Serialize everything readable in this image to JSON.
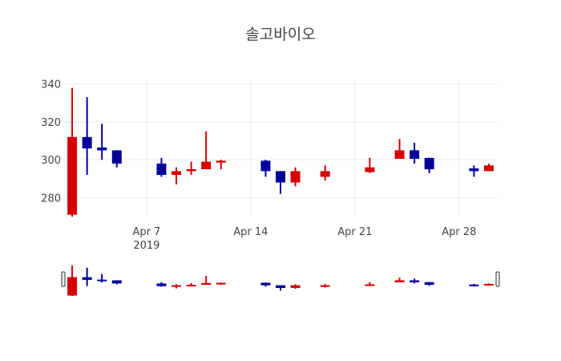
{
  "chart_data": {
    "type": "candlestick",
    "title": "솔고바이오",
    "xlabel": "",
    "ylabel": "",
    "x_range": [
      "2019-04-01T11:00",
      "2019-04-30T13:00"
    ],
    "ylim": [
      270,
      342
    ],
    "grid": true,
    "rangeslider": true,
    "colors": {
      "increasing": "#d50000",
      "decreasing": "#000099",
      "grid": "#eeeeee",
      "text": "#444444"
    },
    "y_ticks": [
      280,
      300,
      320,
      340
    ],
    "x_ticks": [
      {
        "date": "2019-04-07",
        "label": "Apr 7",
        "sublabel": "2019"
      },
      {
        "date": "2019-04-14",
        "label": "Apr 14",
        "sublabel": ""
      },
      {
        "date": "2019-04-21",
        "label": "Apr 21",
        "sublabel": ""
      },
      {
        "date": "2019-04-28",
        "label": "Apr 28",
        "sublabel": ""
      }
    ],
    "candles": [
      {
        "date": "2019-04-02",
        "open": 271,
        "high": 338,
        "low": 270,
        "close": 312
      },
      {
        "date": "2019-04-03",
        "open": 312,
        "high": 333,
        "low": 292,
        "close": 306
      },
      {
        "date": "2019-04-04",
        "open": 306.5,
        "high": 319,
        "low": 300,
        "close": 305
      },
      {
        "date": "2019-04-05",
        "open": 305,
        "high": 305,
        "low": 296,
        "close": 298
      },
      {
        "date": "2019-04-08",
        "open": 298,
        "high": 301,
        "low": 291,
        "close": 292
      },
      {
        "date": "2019-04-09",
        "open": 292,
        "high": 296,
        "low": 287,
        "close": 294
      },
      {
        "date": "2019-04-10",
        "open": 294,
        "high": 299,
        "low": 292,
        "close": 295
      },
      {
        "date": "2019-04-11",
        "open": 295,
        "high": 315,
        "low": 295,
        "close": 299
      },
      {
        "date": "2019-04-12",
        "open": 298.5,
        "high": 300,
        "low": 295,
        "close": 299.5
      },
      {
        "date": "2019-04-15",
        "open": 299.5,
        "high": 300,
        "low": 291,
        "close": 294
      },
      {
        "date": "2019-04-16",
        "open": 294,
        "high": 294,
        "low": 282,
        "close": 288
      },
      {
        "date": "2019-04-17",
        "open": 288,
        "high": 296,
        "low": 286,
        "close": 294
      },
      {
        "date": "2019-04-19",
        "open": 291,
        "high": 297,
        "low": 289,
        "close": 294
      },
      {
        "date": "2019-04-22",
        "open": 293.5,
        "high": 301,
        "low": 293,
        "close": 296
      },
      {
        "date": "2019-04-24",
        "open": 300.5,
        "high": 311,
        "low": 300.5,
        "close": 305
      },
      {
        "date": "2019-04-25",
        "open": 305,
        "high": 309,
        "low": 298,
        "close": 300.5
      },
      {
        "date": "2019-04-26",
        "open": 301,
        "high": 301,
        "low": 293,
        "close": 295
      },
      {
        "date": "2019-04-29",
        "open": 295.5,
        "high": 297,
        "low": 291,
        "close": 294
      },
      {
        "date": "2019-04-30",
        "open": 294,
        "high": 298,
        "low": 294,
        "close": 297
      }
    ]
  }
}
